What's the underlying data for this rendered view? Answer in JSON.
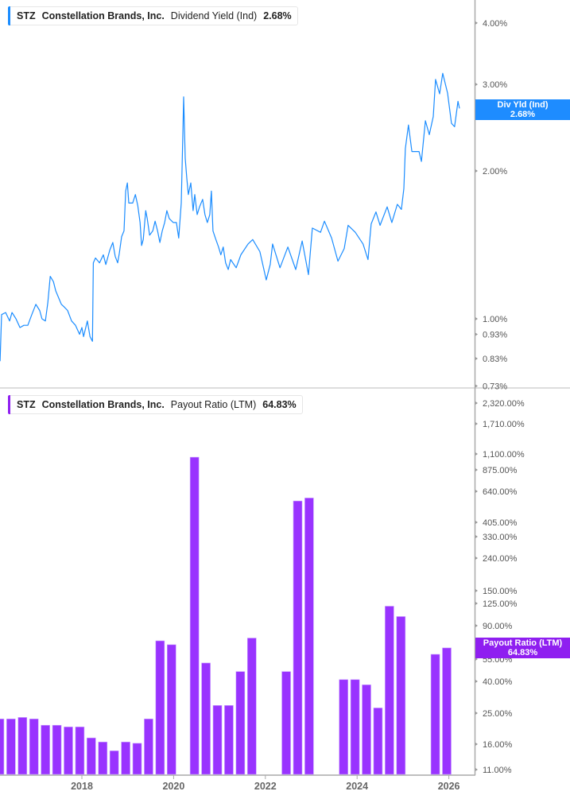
{
  "colors": {
    "yield_line": "#1a8cff",
    "payout_bars": "#9933ff",
    "yield_flag": "#1e8cff",
    "payout_flag": "#8f1ff0"
  },
  "top_legend": {
    "ticker": "STZ",
    "company": "Constellation Brands, Inc.",
    "metric": "Dividend Yield (Ind)",
    "value": "2.68%"
  },
  "bottom_legend": {
    "ticker": "STZ",
    "company": "Constellation Brands, Inc.",
    "metric": "Payout Ratio (LTM)",
    "value": "64.83%"
  },
  "top_flag": {
    "label": "Div Yld (Ind)",
    "value": "2.68%"
  },
  "bottom_flag": {
    "label": "Payout Ratio (LTM)",
    "value": "64.83%"
  },
  "chart_data": [
    {
      "type": "line",
      "series": [
        {
          "name": "Dividend Yield (Ind)",
          "unit": "%",
          "points": [
            [
              "2016-03-19",
              0.82
            ],
            [
              "2016-04-01",
              1.02
            ],
            [
              "2016-05-03",
              1.03
            ],
            [
              "2016-06-04",
              0.99
            ],
            [
              "2016-06-23",
              1.03
            ],
            [
              "2016-07-24",
              1.0
            ],
            [
              "2016-08-25",
              0.96
            ],
            [
              "2016-09-26",
              0.97
            ],
            [
              "2016-10-27",
              0.97
            ],
            [
              "2016-11-28",
              1.02
            ],
            [
              "2016-12-30",
              1.07
            ],
            [
              "2017-01-30",
              1.04
            ],
            [
              "2017-02-18",
              1.0
            ],
            [
              "2017-03-15",
              0.99
            ],
            [
              "2017-04-04",
              1.08
            ],
            [
              "2017-04-23",
              1.22
            ],
            [
              "2017-05-18",
              1.19
            ],
            [
              "2017-06-06",
              1.14
            ],
            [
              "2017-06-25",
              1.11
            ],
            [
              "2017-07-20",
              1.07
            ],
            [
              "2017-08-08",
              1.06
            ],
            [
              "2017-09-09",
              1.04
            ],
            [
              "2017-10-10",
              0.99
            ],
            [
              "2017-11-11",
              0.97
            ],
            [
              "2017-12-13",
              0.93
            ],
            [
              "2018-01-01",
              0.96
            ],
            [
              "2018-01-14",
              0.92
            ],
            [
              "2018-02-14",
              0.99
            ],
            [
              "2018-03-05",
              0.92
            ],
            [
              "2018-03-24",
              0.9
            ],
            [
              "2018-03-31",
              1.3
            ],
            [
              "2018-04-18",
              1.33
            ],
            [
              "2018-05-20",
              1.3
            ],
            [
              "2018-06-20",
              1.35
            ],
            [
              "2018-07-09",
              1.29
            ],
            [
              "2018-08-10",
              1.38
            ],
            [
              "2018-09-04",
              1.43
            ],
            [
              "2018-09-23",
              1.34
            ],
            [
              "2018-10-12",
              1.3
            ],
            [
              "2018-10-25",
              1.36
            ],
            [
              "2018-11-13",
              1.47
            ],
            [
              "2018-12-02",
              1.51
            ],
            [
              "2018-12-15",
              1.82
            ],
            [
              "2018-12-28",
              1.89
            ],
            [
              "2019-01-09",
              1.72
            ],
            [
              "2019-02-10",
              1.72
            ],
            [
              "2019-03-01",
              1.79
            ],
            [
              "2019-03-20",
              1.7
            ],
            [
              "2019-04-08",
              1.57
            ],
            [
              "2019-04-20",
              1.41
            ],
            [
              "2019-05-03",
              1.45
            ],
            [
              "2019-05-22",
              1.66
            ],
            [
              "2019-06-04",
              1.6
            ],
            [
              "2019-06-23",
              1.48
            ],
            [
              "2019-07-18",
              1.51
            ],
            [
              "2019-08-06",
              1.58
            ],
            [
              "2019-08-25",
              1.51
            ],
            [
              "2019-09-13",
              1.43
            ],
            [
              "2019-10-02",
              1.51
            ],
            [
              "2019-10-21",
              1.57
            ],
            [
              "2019-11-08",
              1.66
            ],
            [
              "2019-11-27",
              1.6
            ],
            [
              "2019-12-29",
              1.57
            ],
            [
              "2020-01-23",
              1.57
            ],
            [
              "2020-02-11",
              1.46
            ],
            [
              "2020-03-01",
              1.72
            ],
            [
              "2020-03-14",
              2.41
            ],
            [
              "2020-03-20",
              2.83
            ],
            [
              "2020-04-02",
              2.12
            ],
            [
              "2020-04-15",
              1.93
            ],
            [
              "2020-04-27",
              1.79
            ],
            [
              "2020-05-16",
              1.89
            ],
            [
              "2020-06-04",
              1.66
            ],
            [
              "2020-06-17",
              1.79
            ],
            [
              "2020-07-06",
              1.63
            ],
            [
              "2020-07-25",
              1.69
            ],
            [
              "2020-08-19",
              1.75
            ],
            [
              "2020-09-07",
              1.63
            ],
            [
              "2020-09-26",
              1.57
            ],
            [
              "2020-10-15",
              1.63
            ],
            [
              "2020-10-28",
              1.82
            ],
            [
              "2020-11-10",
              1.51
            ],
            [
              "2020-11-29",
              1.46
            ],
            [
              "2020-12-24",
              1.4
            ],
            [
              "2021-01-12",
              1.35
            ],
            [
              "2021-01-31",
              1.4
            ],
            [
              "2021-02-19",
              1.3
            ],
            [
              "2021-03-10",
              1.26
            ],
            [
              "2021-03-29",
              1.32
            ],
            [
              "2021-05-12",
              1.27
            ],
            [
              "2021-06-19",
              1.35
            ],
            [
              "2021-08-15",
              1.42
            ],
            [
              "2021-09-22",
              1.45
            ],
            [
              "2021-11-18",
              1.37
            ],
            [
              "2022-01-08",
              1.2
            ],
            [
              "2022-02-09",
              1.29
            ],
            [
              "2022-02-28",
              1.42
            ],
            [
              "2022-04-26",
              1.27
            ],
            [
              "2022-06-28",
              1.4
            ],
            [
              "2022-08-30",
              1.26
            ],
            [
              "2022-10-20",
              1.44
            ],
            [
              "2022-12-09",
              1.23
            ],
            [
              "2023-01-10",
              1.53
            ],
            [
              "2023-03-14",
              1.5
            ],
            [
              "2023-04-15",
              1.58
            ],
            [
              "2023-06-11",
              1.46
            ],
            [
              "2023-07-31",
              1.31
            ],
            [
              "2023-09-20",
              1.39
            ],
            [
              "2023-10-21",
              1.55
            ],
            [
              "2023-12-17",
              1.5
            ],
            [
              "2024-02-18",
              1.42
            ],
            [
              "2024-03-27",
              1.32
            ],
            [
              "2024-04-22",
              1.56
            ],
            [
              "2024-05-29",
              1.65
            ],
            [
              "2024-07-01",
              1.55
            ],
            [
              "2024-08-27",
              1.69
            ],
            [
              "2024-10-04",
              1.57
            ],
            [
              "2024-11-17",
              1.71
            ],
            [
              "2024-12-19",
              1.67
            ],
            [
              "2025-01-08",
              1.84
            ],
            [
              "2025-01-20",
              2.22
            ],
            [
              "2025-02-14",
              2.48
            ],
            [
              "2025-03-11",
              2.19
            ],
            [
              "2025-05-07",
              2.19
            ],
            [
              "2025-05-26",
              2.09
            ],
            [
              "2025-06-27",
              2.53
            ],
            [
              "2025-07-28",
              2.37
            ],
            [
              "2025-08-29",
              2.58
            ],
            [
              "2025-09-17",
              3.07
            ],
            [
              "2025-10-19",
              2.87
            ],
            [
              "2025-11-13",
              3.16
            ],
            [
              "2025-12-21",
              2.88
            ],
            [
              "2026-01-22",
              2.5
            ],
            [
              "2026-02-16",
              2.46
            ],
            [
              "2026-03-13",
              2.77
            ],
            [
              "2026-03-25",
              2.68
            ]
          ]
        }
      ],
      "y_scale": "log",
      "y_ticks": [
        "4.00%",
        "3.00%",
        "2.00%",
        "1.00%",
        "0.93%",
        "0.83%",
        "0.73%"
      ],
      "y_tick_values": [
        4.0,
        3.0,
        2.0,
        1.0,
        0.93,
        0.83,
        0.73
      ],
      "ylim": [
        0.72,
        4.5
      ],
      "grid": false
    },
    {
      "type": "bar",
      "series": [
        {
          "name": "Payout Ratio (LTM)",
          "unit": "%",
          "points": [
            [
              "2016-03",
              23
            ],
            [
              "2016-06",
              23
            ],
            [
              "2016-09",
              23.5
            ],
            [
              "2016-12",
              23
            ],
            [
              "2017-03",
              21
            ],
            [
              "2017-06",
              21
            ],
            [
              "2017-09",
              20.5
            ],
            [
              "2017-12",
              20.5
            ],
            [
              "2018-03",
              17.5
            ],
            [
              "2018-06",
              16.5
            ],
            [
              "2018-09",
              14.5
            ],
            [
              "2018-12",
              16.5
            ],
            [
              "2019-03",
              16.2
            ],
            [
              "2019-06",
              23
            ],
            [
              "2019-09",
              72
            ],
            [
              "2019-12",
              68
            ],
            [
              "2020-03",
              null
            ],
            [
              "2020-06",
              1050
            ],
            [
              "2020-09",
              52
            ],
            [
              "2020-12",
              28
            ],
            [
              "2021-03",
              28
            ],
            [
              "2021-06",
              46
            ],
            [
              "2021-09",
              75
            ],
            [
              "2021-12",
              null
            ],
            [
              "2022-03",
              null
            ],
            [
              "2022-06",
              46
            ],
            [
              "2022-09",
              555
            ],
            [
              "2022-12",
              580
            ],
            [
              "2023-03",
              null
            ],
            [
              "2023-06",
              null
            ],
            [
              "2023-09",
              41
            ],
            [
              "2023-12",
              41
            ],
            [
              "2024-03",
              38
            ],
            [
              "2024-06",
              27
            ],
            [
              "2024-09",
              120
            ],
            [
              "2024-12",
              103
            ],
            [
              "2025-03",
              null
            ],
            [
              "2025-06",
              null
            ],
            [
              "2025-09",
              59
            ],
            [
              "2025-12",
              64.83
            ]
          ]
        }
      ],
      "y_ticks": [
        "2,320.00%",
        "1,710.00%",
        "1,100.00%",
        "875.00%",
        "640.00%",
        "405.00%",
        "330.00%",
        "240.00%",
        "150.00%",
        "125.00%",
        "90.00%",
        "55.00%",
        "40.00%",
        "25.00%",
        "16.00%",
        "11.00%"
      ],
      "y_tick_values": [
        2320,
        1710,
        1100,
        875,
        640,
        405,
        330,
        240,
        150,
        125,
        90,
        55,
        40,
        25,
        16,
        11
      ],
      "grid": false
    }
  ],
  "x_axis": {
    "ticks": [
      "2018",
      "2020",
      "2022",
      "2024",
      "2026"
    ]
  }
}
